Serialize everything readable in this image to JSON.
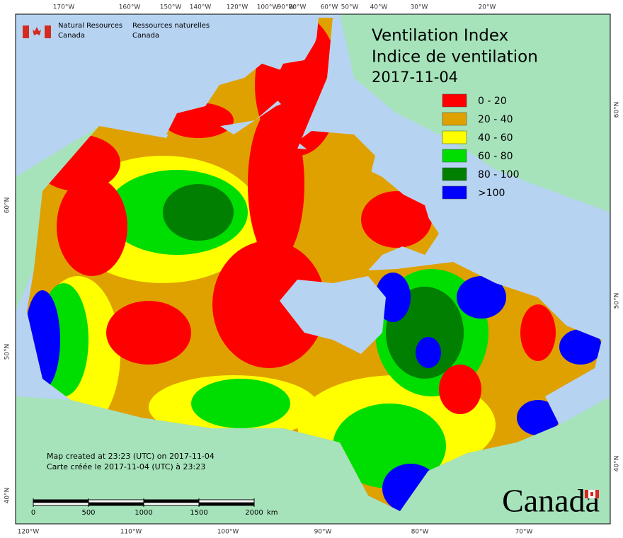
{
  "header": {
    "org_en": [
      "Natural Resources",
      "Canada"
    ],
    "org_fr": [
      "Ressources naturelles",
      "Canada"
    ]
  },
  "title": {
    "en": "Ventilation Index",
    "fr": "Indice de ventilation",
    "date": "2017-11-04"
  },
  "legend": [
    {
      "label": "0 - 20",
      "color": "#ff0000"
    },
    {
      "label": "20 - 40",
      "color": "#dfa100"
    },
    {
      "label": "40 - 60",
      "color": "#ffff00"
    },
    {
      "label": "60 - 80",
      "color": "#00dd00"
    },
    {
      "label": "80 - 100",
      "color": "#007f00"
    },
    {
      "label": ">100",
      "color": "#0000ff"
    }
  ],
  "graticule": {
    "top": [
      "170°W",
      "160°W",
      "150°W",
      "140°W",
      "120°W",
      "100°W",
      "90°W",
      "80°W",
      "60°W",
      "50°W",
      "40°W",
      "30°W",
      "20°W"
    ],
    "bottom": [
      "120°W",
      "110°W",
      "100°W",
      "90°W",
      "80°W",
      "70°W"
    ],
    "left": [
      "60°N",
      "50°N",
      "40°N"
    ],
    "right": [
      "60°N",
      "50°N",
      "40°N"
    ]
  },
  "notes": [
    "Map created at 23:23 (UTC) on 2017-11-04",
    "Carte créée le 2017-11-04 (UTC) à 23:23"
  ],
  "scale_bar": {
    "ticks": [
      0,
      500,
      1000,
      1500,
      2000
    ],
    "unit": "km"
  },
  "wordmark": "Canada"
}
